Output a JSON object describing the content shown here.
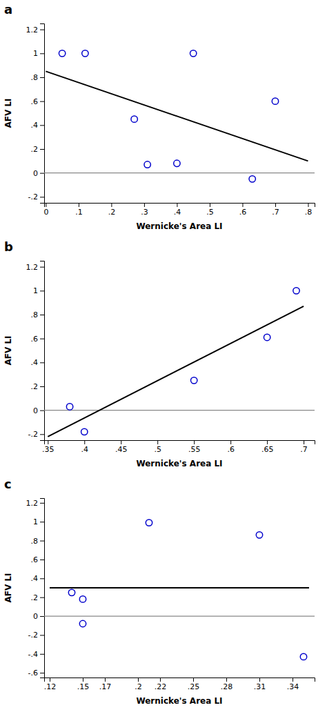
{
  "chart_data": [
    {
      "type": "scatter",
      "title": "a",
      "x_label": "Wernicke's Area LI",
      "y_label": "AFV LI",
      "series": [
        {
          "type": "scatter",
          "marker": "circle-open",
          "color": "#0000CC",
          "x": [
            0.05,
            0.12,
            0.27,
            0.31,
            0.4,
            0.45,
            0.63,
            0.7
          ],
          "values": [
            1.0,
            1.0,
            0.45,
            0.07,
            0.08,
            1.0,
            -0.05,
            0.6
          ]
        },
        {
          "type": "line",
          "line_style": "solid",
          "color": "#000000",
          "x": [
            0.0,
            0.8
          ],
          "values": [
            0.85,
            0.1
          ]
        },
        {
          "type": "hline",
          "line_style": "solid",
          "color": "#888888",
          "values": [
            0.0
          ]
        }
      ],
      "xlim": [
        -0.005,
        0.82
      ],
      "ylim": [
        -0.25,
        1.25
      ],
      "xticks": [
        0,
        {
          "value": 0.1,
          "label": ".1"
        },
        {
          "value": 0.2,
          "label": ".2"
        },
        {
          "value": 0.3,
          "label": ".3"
        },
        {
          "value": 0.4,
          "label": ".4"
        },
        {
          "value": 0.5,
          "label": ".5"
        },
        {
          "value": 0.6,
          "label": ".6"
        },
        {
          "value": 0.7,
          "label": ".7"
        },
        {
          "value": 0.8,
          "label": ".8"
        }
      ],
      "yticks": [
        {
          "value": -0.2,
          "label": "-.2"
        },
        0,
        {
          "value": 0.2,
          "label": ".2"
        },
        {
          "value": 0.4,
          "label": ".4"
        },
        {
          "value": 0.6,
          "label": ".6"
        },
        {
          "value": 0.8,
          "label": ".8"
        },
        1,
        1.2
      ],
      "grid": false
    },
    {
      "type": "scatter",
      "title": "b",
      "x_label": "Wernicke's Area LI",
      "y_label": "AFV LI",
      "series": [
        {
          "type": "scatter",
          "marker": "circle-open",
          "color": "#0000CC",
          "x": [
            0.38,
            0.4,
            0.55,
            0.65,
            0.69
          ],
          "values": [
            0.03,
            -0.18,
            0.25,
            0.61,
            1.0
          ]
        },
        {
          "type": "line",
          "line_style": "solid",
          "color": "#000000",
          "x": [
            0.35,
            0.7
          ],
          "values": [
            -0.22,
            0.87
          ]
        },
        {
          "type": "hline",
          "line_style": "solid",
          "color": "#888888",
          "values": [
            0.0
          ]
        }
      ],
      "xlim": [
        0.345,
        0.715
      ],
      "ylim": [
        -0.25,
        1.25
      ],
      "xticks": [
        {
          "value": 0.35,
          "label": ".35"
        },
        {
          "value": 0.4,
          "label": ".4"
        },
        {
          "value": 0.45,
          "label": ".45"
        },
        {
          "value": 0.5,
          "label": ".5"
        },
        {
          "value": 0.55,
          "label": ".55"
        },
        {
          "value": 0.6,
          "label": ".6"
        },
        {
          "value": 0.65,
          "label": ".65"
        },
        {
          "value": 0.7,
          "label": ".7"
        }
      ],
      "yticks": [
        {
          "value": -0.2,
          "label": "-.2"
        },
        0,
        {
          "value": 0.2,
          "label": ".2"
        },
        {
          "value": 0.4,
          "label": ".4"
        },
        {
          "value": 0.6,
          "label": ".6"
        },
        {
          "value": 0.8,
          "label": ".8"
        },
        1,
        1.2
      ],
      "grid": false
    },
    {
      "type": "scatter",
      "title": "c",
      "x_label": "Wernicke's Area LI",
      "y_label": "AFV LI",
      "series": [
        {
          "type": "scatter",
          "marker": "circle-open",
          "color": "#0000CC",
          "x": [
            0.14,
            0.15,
            0.15,
            0.21,
            0.31,
            0.35
          ],
          "values": [
            0.25,
            0.18,
            -0.08,
            0.99,
            0.86,
            -0.43
          ]
        },
        {
          "type": "line",
          "line_style": "solid",
          "color": "#000000",
          "x": [
            0.12,
            0.355
          ],
          "values": [
            0.3,
            0.3
          ]
        },
        {
          "type": "hline",
          "line_style": "solid",
          "color": "#888888",
          "values": [
            0.0
          ]
        }
      ],
      "xlim": [
        0.115,
        0.36
      ],
      "ylim": [
        -0.65,
        1.25
      ],
      "xticks": [
        {
          "value": 0.12,
          "label": ".12"
        },
        {
          "value": 0.15,
          "label": ".15"
        },
        {
          "value": 0.17,
          "label": ".17"
        },
        {
          "value": 0.2,
          "label": ".2"
        },
        {
          "value": 0.22,
          "label": ".22"
        },
        {
          "value": 0.25,
          "label": ".25"
        },
        {
          "value": 0.28,
          "label": ".28"
        },
        {
          "value": 0.31,
          "label": ".31"
        },
        {
          "value": 0.34,
          "label": ".34"
        }
      ],
      "yticks": [
        {
          "value": -0.6,
          "label": "-.6"
        },
        {
          "value": -0.4,
          "label": "-.4"
        },
        {
          "value": -0.2,
          "label": "-.2"
        },
        0,
        {
          "value": 0.2,
          "label": ".2"
        },
        {
          "value": 0.4,
          "label": ".4"
        },
        {
          "value": 0.6,
          "label": ".6"
        },
        {
          "value": 0.8,
          "label": ".8"
        },
        1,
        1.2
      ],
      "grid": false
    }
  ]
}
